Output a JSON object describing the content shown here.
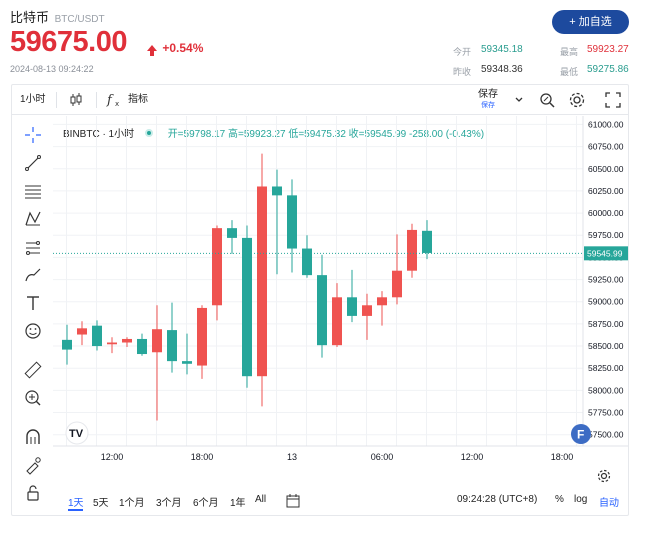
{
  "header": {
    "pair_name": "比特币",
    "pair_symbol": "BTC/USDT",
    "price": "59675.00",
    "change": "+0.54%",
    "timestamp": "2024-08-13 09:24:22",
    "favorite_label": "+ 加自选",
    "stats": {
      "open_label": "今开",
      "open_value": "59345.18",
      "high_label": "最高",
      "high_value": "59923.27",
      "prev_close_label": "昨收",
      "prev_close_value": "59348.36",
      "low_label": "最低",
      "low_value": "59275.86"
    }
  },
  "toolbar": {
    "interval": "1小时",
    "indicator_label": "指标",
    "save_label": "保存",
    "save_sub": "保存"
  },
  "legend": {
    "symbol": "BINBTC · 1小时",
    "ohlc": "开=59798.17 高=59923.27 低=59475.32 收=59545.99 -258.00 (-0.43%)"
  },
  "bottom": {
    "ranges": [
      "1天",
      "5天",
      "1个月",
      "3个月",
      "6个月",
      "1年",
      "All"
    ],
    "clock": "09:24:28 (UTC+8)",
    "percent": "%",
    "log": "log",
    "auto": "自动"
  },
  "colors": {
    "up": "#26a69a",
    "down": "#ef5350",
    "accent": "#2962ff",
    "price_red": "#e0303a",
    "brand_blue": "#1d4a9e"
  },
  "chart_data": {
    "type": "candlestick",
    "symbol": "BINBTC",
    "interval": "1小时",
    "y_ticks": [
      57500,
      57750,
      58000,
      58250,
      58500,
      58750,
      59000,
      59250,
      59500,
      59750,
      60000,
      60250,
      60500,
      60750,
      61000
    ],
    "y_tick_labels": [
      "57500.00",
      "57750.00",
      "58000.00",
      "58250.00",
      "58500.00",
      "58750.00",
      "59000.00",
      "59250.00",
      "59500.00",
      "59750.00",
      "60000.00",
      "60250.00",
      "60500.00",
      "60750.00",
      "61000.00"
    ],
    "ylim": [
      57350,
      61050
    ],
    "x_tick_labels": [
      "12:00",
      "18:00",
      "13",
      "06:00",
      "12:00",
      "18:00"
    ],
    "x_tick_index": [
      3,
      9,
      15,
      21,
      27,
      33
    ],
    "last_price": 59545.99,
    "last_price_label": "59545.99",
    "candles": [
      {
        "o": 58570,
        "h": 58740,
        "l": 58290,
        "c": 58460
      },
      {
        "o": 58630,
        "h": 58780,
        "l": 58510,
        "c": 58700
      },
      {
        "o": 58730,
        "h": 58790,
        "l": 58450,
        "c": 58500
      },
      {
        "o": 58520,
        "h": 58600,
        "l": 58420,
        "c": 58540
      },
      {
        "o": 58540,
        "h": 58600,
        "l": 58490,
        "c": 58580
      },
      {
        "o": 58580,
        "h": 58640,
        "l": 58390,
        "c": 58410
      },
      {
        "o": 58430,
        "h": 58960,
        "l": 57660,
        "c": 58690
      },
      {
        "o": 58680,
        "h": 58990,
        "l": 58200,
        "c": 58330
      },
      {
        "o": 58330,
        "h": 58640,
        "l": 58180,
        "c": 58300
      },
      {
        "o": 58280,
        "h": 58960,
        "l": 58130,
        "c": 58930
      },
      {
        "o": 58960,
        "h": 59860,
        "l": 58790,
        "c": 59830
      },
      {
        "o": 59830,
        "h": 59920,
        "l": 59540,
        "c": 59720
      },
      {
        "o": 59720,
        "h": 59860,
        "l": 58030,
        "c": 58160
      },
      {
        "o": 58160,
        "h": 60670,
        "l": 57820,
        "c": 60300
      },
      {
        "o": 60300,
        "h": 60490,
        "l": 59310,
        "c": 60200
      },
      {
        "o": 60200,
        "h": 60380,
        "l": 59330,
        "c": 59600
      },
      {
        "o": 59600,
        "h": 59750,
        "l": 59270,
        "c": 59300
      },
      {
        "o": 59300,
        "h": 59530,
        "l": 58370,
        "c": 58510
      },
      {
        "o": 58510,
        "h": 59210,
        "l": 58490,
        "c": 59050
      },
      {
        "o": 59050,
        "h": 59360,
        "l": 58770,
        "c": 58840
      },
      {
        "o": 58840,
        "h": 59090,
        "l": 58570,
        "c": 58960
      },
      {
        "o": 58960,
        "h": 59120,
        "l": 58730,
        "c": 59050
      },
      {
        "o": 59050,
        "h": 59760,
        "l": 58970,
        "c": 59350
      },
      {
        "o": 59350,
        "h": 59880,
        "l": 59270,
        "c": 59810
      },
      {
        "o": 59800,
        "h": 59920,
        "l": 59480,
        "c": 59550
      }
    ]
  }
}
